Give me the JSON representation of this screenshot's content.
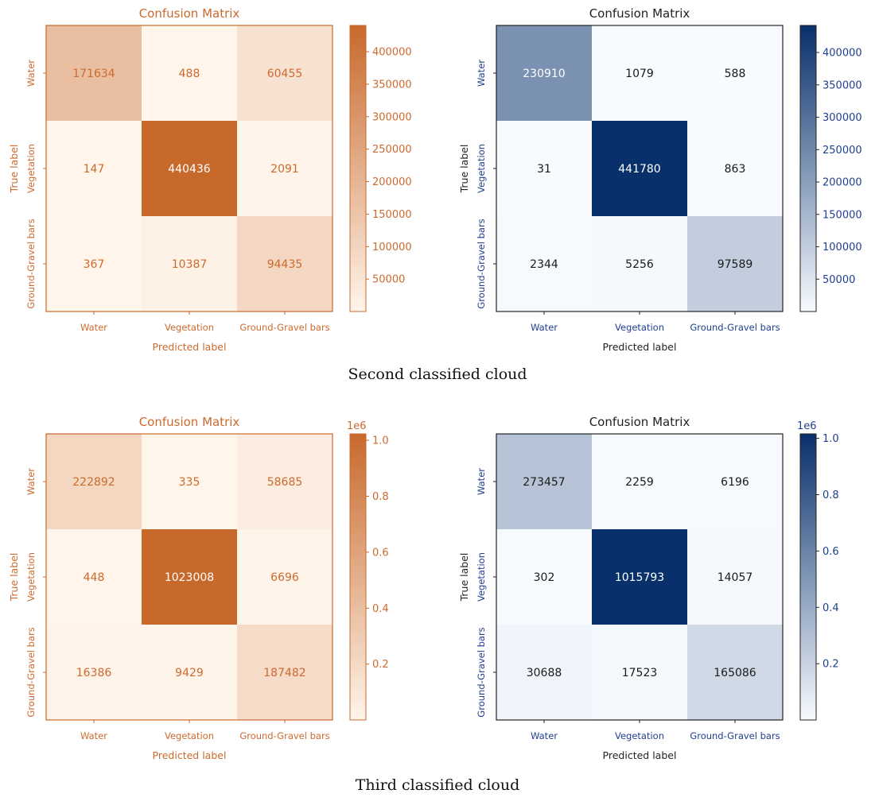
{
  "captions": {
    "second": "Second classified cloud",
    "third": "Third classified cloud"
  },
  "colors": {
    "orange_dark": "#c8692c",
    "orange_light": "#fff5eb",
    "orange_text": "#cc6a2e",
    "blue_dark": "#08306b",
    "blue_light": "#f7fbff",
    "blue_text": "#1f3f8f"
  },
  "chart_data": [
    {
      "type": "heatmap",
      "id": "m1",
      "palette": "orange",
      "title": "Confusion Matrix",
      "xlabel": "Predicted label",
      "ylabel": "True label",
      "x_categories": [
        "Water",
        "Vegetation",
        "Ground-Gravel bars"
      ],
      "y_categories": [
        "Water",
        "Vegetation",
        "Ground-Gravel bars"
      ],
      "values": [
        [
          171634,
          488,
          60455
        ],
        [
          147,
          440436,
          2091
        ],
        [
          367,
          10387,
          94435
        ]
      ],
      "colorbar_range": [
        147,
        440436
      ],
      "colorbar_ticks": [
        50000,
        100000,
        150000,
        200000,
        250000,
        300000,
        350000,
        400000
      ],
      "colorbar_tick_labels": [
        "50000",
        "100000",
        "150000",
        "200000",
        "250000",
        "300000",
        "350000",
        "400000"
      ],
      "colorbar_offset": ""
    },
    {
      "type": "heatmap",
      "id": "m2",
      "palette": "blue",
      "title": "Confusion Matrix",
      "xlabel": "Predicted label",
      "ylabel": "True label",
      "x_categories": [
        "Water",
        "Vegetation",
        "Ground-Gravel bars"
      ],
      "y_categories": [
        "Water",
        "Vegetation",
        "Ground-Gravel bars"
      ],
      "values": [
        [
          230910,
          1079,
          588
        ],
        [
          31,
          441780,
          863
        ],
        [
          2344,
          5256,
          97589
        ]
      ],
      "colorbar_range": [
        31,
        441780
      ],
      "colorbar_ticks": [
        50000,
        100000,
        150000,
        200000,
        250000,
        300000,
        350000,
        400000
      ],
      "colorbar_tick_labels": [
        "50000",
        "100000",
        "150000",
        "200000",
        "250000",
        "300000",
        "350000",
        "400000"
      ],
      "colorbar_offset": ""
    },
    {
      "type": "heatmap",
      "id": "m3",
      "palette": "orange",
      "title": "Confusion Matrix",
      "xlabel": "Predicted label",
      "ylabel": "True label",
      "x_categories": [
        "Water",
        "Vegetation",
        "Ground-Gravel bars"
      ],
      "y_categories": [
        "Water",
        "Vegetation",
        "Ground-Gravel bars"
      ],
      "values": [
        [
          222892,
          335,
          58685
        ],
        [
          448,
          1023008,
          6696
        ],
        [
          16386,
          9429,
          187482
        ]
      ],
      "colorbar_range": [
        335,
        1023008
      ],
      "colorbar_ticks": [
        200000,
        400000,
        600000,
        800000,
        1000000
      ],
      "colorbar_tick_labels": [
        "0.2",
        "0.4",
        "0.6",
        "0.8",
        "1.0"
      ],
      "colorbar_offset": "1e6"
    },
    {
      "type": "heatmap",
      "id": "m4",
      "palette": "blue",
      "title": "Confusion Matrix",
      "xlabel": "Predicted label",
      "ylabel": "True label",
      "x_categories": [
        "Water",
        "Vegetation",
        "Ground-Gravel bars"
      ],
      "y_categories": [
        "Water",
        "Vegetation",
        "Ground-Gravel bars"
      ],
      "values": [
        [
          273457,
          2259,
          6196
        ],
        [
          302,
          1015793,
          14057
        ],
        [
          30688,
          17523,
          165086
        ]
      ],
      "colorbar_range": [
        302,
        1015793
      ],
      "colorbar_ticks": [
        200000,
        400000,
        600000,
        800000,
        1000000
      ],
      "colorbar_tick_labels": [
        "0.2",
        "0.4",
        "0.6",
        "0.8",
        "1.0"
      ],
      "colorbar_offset": "1e6"
    }
  ]
}
